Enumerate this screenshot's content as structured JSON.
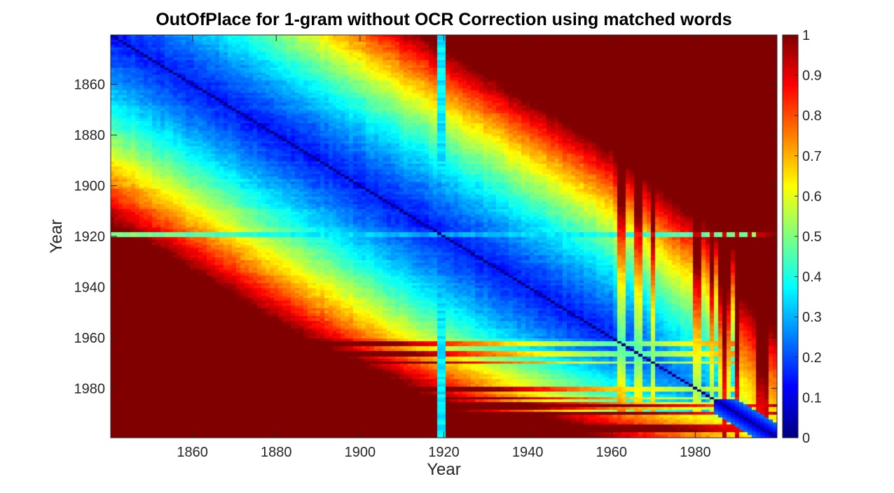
{
  "chart_data": {
    "type": "heatmap",
    "title": "OutOfPlace for 1-gram without OCR Correction using matched words",
    "xlabel": "Year",
    "ylabel": "Year",
    "x_range": [
      1841,
      1999
    ],
    "y_range": [
      1841,
      1999
    ],
    "y_direction": "reversed",
    "x_ticks": [
      "1860",
      "1880",
      "1900",
      "1920",
      "1940",
      "1960",
      "1980"
    ],
    "y_ticks": [
      "1860",
      "1880",
      "1900",
      "1920",
      "1940",
      "1960",
      "1980"
    ],
    "colormap": "jet",
    "colorbar": {
      "range": [
        0,
        1
      ],
      "ticks": [
        "0",
        "0.1",
        "0.2",
        "0.3",
        "0.4",
        "0.5",
        "0.6",
        "0.7",
        "0.8",
        "0.9",
        "1"
      ],
      "location": "right"
    },
    "pattern": {
      "diagonal_value": 0.0,
      "low_value_band_years": [
        1841,
        1960
      ],
      "high_value_late_columns": [
        1962,
        1963,
        1966,
        1967,
        1970,
        1980,
        1981,
        1984,
        1987,
        1990,
        1993,
        1995,
        1996,
        1997,
        1998,
        1999
      ],
      "high_value_late_rows": [
        1986,
        1987,
        1988,
        1990,
        1991,
        1992,
        1994,
        1995,
        1996,
        1997
      ],
      "outlier_year": 1919,
      "outlier_row_value_range": [
        0.05,
        0.85
      ],
      "outlier_column_value_range": [
        0.05,
        0.45
      ]
    }
  }
}
